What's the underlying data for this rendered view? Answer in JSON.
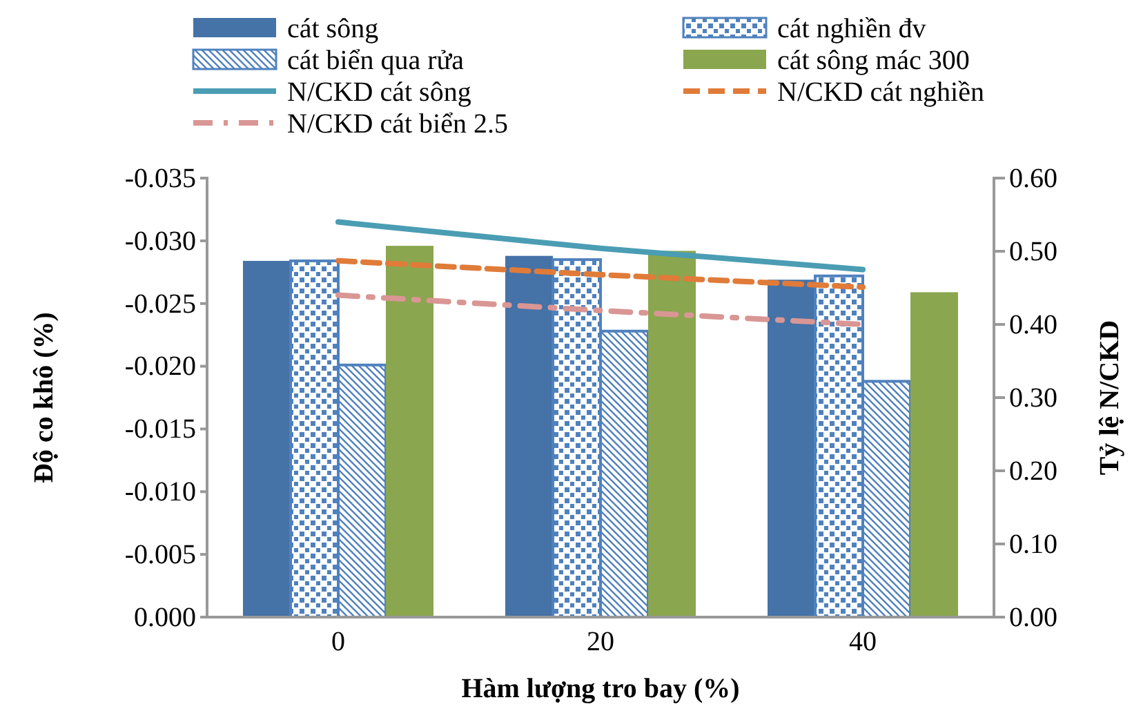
{
  "chart_data": {
    "type": "bar",
    "xlabel": "Hàm lượng tro bay (%)",
    "ylabel": "Độ co khô (%)",
    "y2label": "Tỷ lệ N/CKD",
    "categories": [
      "0",
      "20",
      "40"
    ],
    "series": [
      {
        "name": "cát sông",
        "color": "#4572a7",
        "values": [
          -0.0284,
          -0.0288,
          -0.0269
        ]
      },
      {
        "name": "cát nghiền đv",
        "color": "#4f81bd",
        "values": [
          -0.0284,
          -0.0285,
          -0.0272
        ]
      },
      {
        "name": "cát biển qua rửa",
        "color": "#4f81bd",
        "values": [
          -0.0201,
          -0.0228,
          -0.0188
        ]
      },
      {
        "name": "cát sông mác 300",
        "color": "#8aa64f",
        "values": [
          -0.0296,
          -0.0292,
          -0.0259
        ]
      },
      {
        "name": "N/CKD cát sông",
        "type": "line",
        "axis": "y2",
        "color": "#4a9db3",
        "line_style": "solid",
        "values": [
          0.54,
          0.504,
          0.475
        ]
      },
      {
        "name": "N/CKD cát nghiền",
        "type": "line",
        "axis": "y2",
        "color": "#e07b39",
        "line_style": "dashed",
        "values": [
          0.487,
          0.468,
          0.451
        ]
      },
      {
        "name": "N/CKD cát biển 2.5",
        "type": "line",
        "axis": "y2",
        "color": "#d99694",
        "line_style": "dashdot",
        "values": [
          0.44,
          0.419,
          0.4
        ]
      }
    ],
    "ylim": [
      0,
      -0.035
    ],
    "yticks": [
      {
        "value": 0,
        "label": "0.000"
      },
      {
        "value": -0.005,
        "label": "-0.005"
      },
      {
        "value": -0.01,
        "label": "-0.010"
      },
      {
        "value": -0.015,
        "label": "-0.015"
      },
      {
        "value": -0.02,
        "label": "-0.020"
      },
      {
        "value": -0.025,
        "label": "-0.025"
      },
      {
        "value": -0.03,
        "label": "-0.030"
      },
      {
        "value": -0.035,
        "label": "-0.035"
      }
    ],
    "y2lim": [
      0,
      0.6
    ],
    "y2ticks": [
      {
        "value": 0,
        "label": "0.00"
      },
      {
        "value": 0.1,
        "label": "0.10"
      },
      {
        "value": 0.2,
        "label": "0.20"
      },
      {
        "value": 0.3,
        "label": "0.30"
      },
      {
        "value": 0.4,
        "label": "0.40"
      },
      {
        "value": 0.5,
        "label": "0.50"
      },
      {
        "value": 0.6,
        "label": "0.60"
      }
    ],
    "legend": "top",
    "grid": false
  }
}
